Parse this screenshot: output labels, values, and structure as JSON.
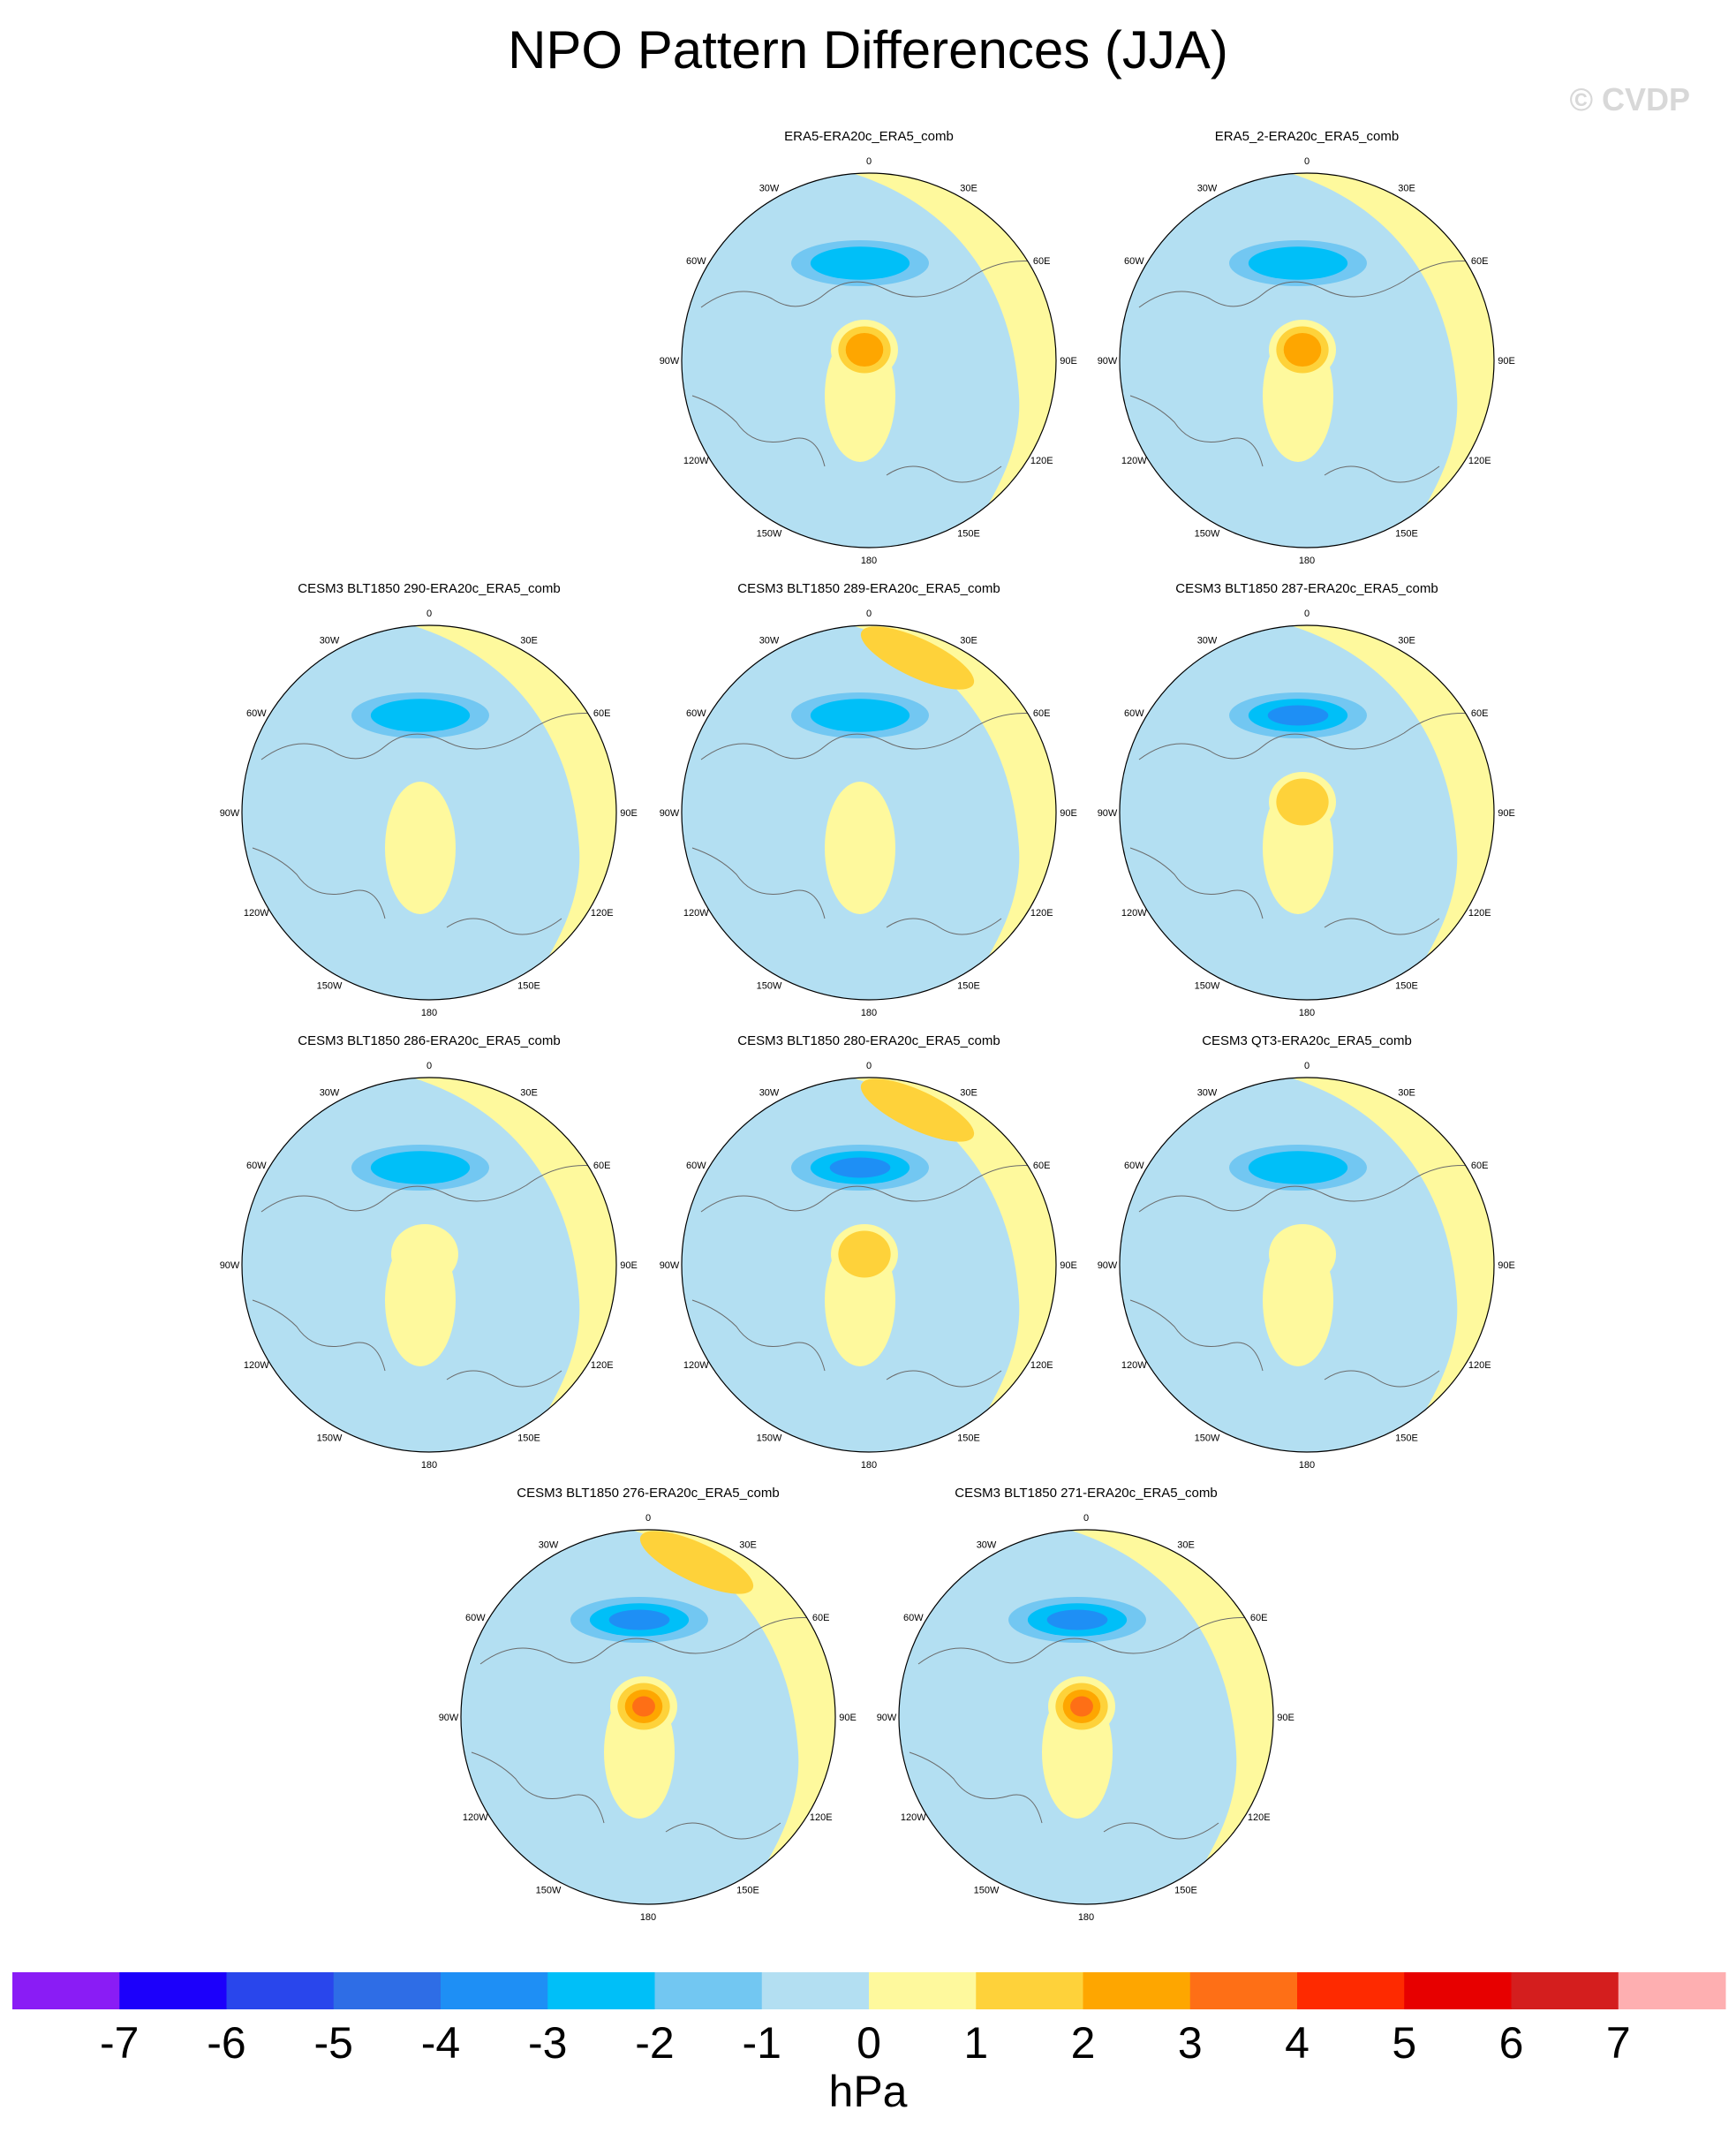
{
  "title": "NPO Pattern Differences (JJA)",
  "watermark": "© CVDP",
  "lon_labels": [
    "180",
    "150E",
    "120E",
    "90E",
    "60E",
    "30E",
    "0",
    "30W",
    "60W",
    "90W",
    "120W",
    "150W"
  ],
  "panels": [
    {
      "title": "ERA5-ERA20c_ERA5_comb",
      "npac_low": -2,
      "arctic_high": 3,
      "npac_high": 0
    },
    {
      "title": "ERA5_2-ERA20c_ERA5_comb",
      "npac_low": -2,
      "arctic_high": 3,
      "npac_high": 0
    },
    {
      "title": "CESM3 BLT1850 290-ERA20c_ERA5_comb",
      "npac_low": -2,
      "arctic_high": 0,
      "npac_high": 0
    },
    {
      "title": "CESM3 BLT1850 289-ERA20c_ERA5_comb",
      "npac_low": -2,
      "arctic_high": 0,
      "npac_high": 2
    },
    {
      "title": "CESM3 BLT1850 287-ERA20c_ERA5_comb",
      "npac_low": -3,
      "arctic_high": 2,
      "npac_high": 0
    },
    {
      "title": "CESM3 BLT1850 286-ERA20c_ERA5_comb",
      "npac_low": -2,
      "arctic_high": 1,
      "npac_high": 0
    },
    {
      "title": "CESM3 BLT1850 280-ERA20c_ERA5_comb",
      "npac_low": -3,
      "arctic_high": 2,
      "npac_high": 2
    },
    {
      "title": "CESM3 QT3-ERA20c_ERA5_comb",
      "npac_low": -2,
      "arctic_high": 1,
      "npac_high": 0
    },
    {
      "title": "CESM3 BLT1850 276-ERA20c_ERA5_comb",
      "npac_low": -3,
      "arctic_high": 4,
      "npac_high": 2
    },
    {
      "title": "CESM3 BLT1850 271-ERA20c_ERA5_comb",
      "npac_low": -3,
      "arctic_high": 4,
      "npac_high": 0
    }
  ],
  "colorbar": {
    "colors": [
      "#8a1cf5",
      "#1c00fb",
      "#2946ec",
      "#2e6de6",
      "#1e8ff5",
      "#00bff8",
      "#72c7f2",
      "#b3dff2",
      "#fef99d",
      "#fed23a",
      "#fea600",
      "#fe6f16",
      "#fe2a00",
      "#e70000",
      "#d41e1e",
      "#feafb1"
    ],
    "labels": [
      "-7",
      "-6",
      "-5",
      "-4",
      "-3",
      "-2",
      "-1",
      "0",
      "1",
      "2",
      "3",
      "4",
      "5",
      "6",
      "7"
    ],
    "units": "hPa"
  }
}
